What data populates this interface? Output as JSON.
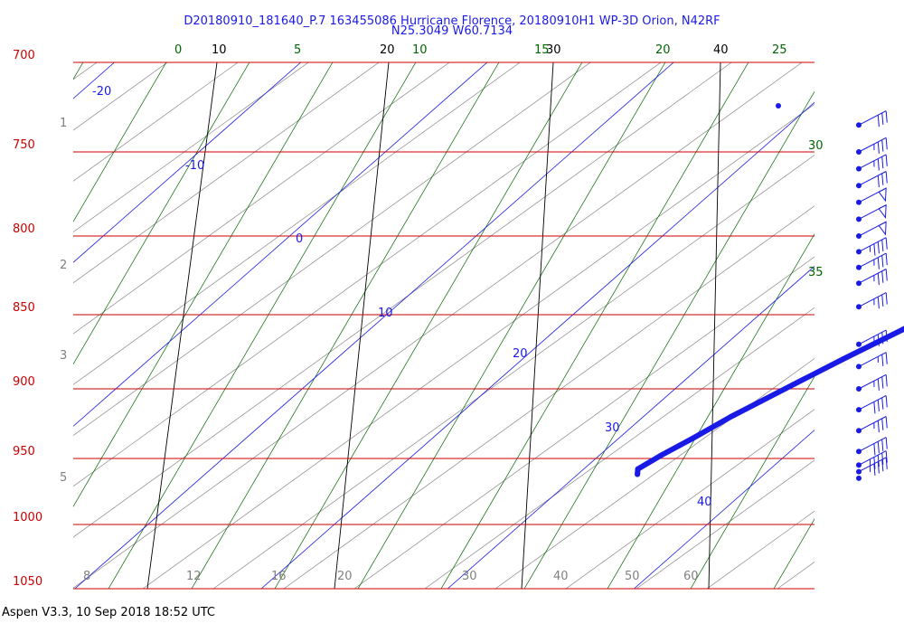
{
  "header": {
    "title_line1": "D20180910_181640_P.7 163455086 Hurricane Florence, 20180910H1 WP-3D Orion, N42RF",
    "title_line2": "N25.3049 W60.7134"
  },
  "footer": {
    "text": "Aspen V3.3, 10 Sep 2018  18:52 UTC"
  },
  "colors": {
    "isobar": "#cc0000",
    "isotherm": "#1a1ae6",
    "dry_adiabat": "#888888",
    "mixing_ratio": "#000000",
    "moist_adiabat": "#006600",
    "profile": "#1a1ae6",
    "profile_top": "#ee0000",
    "altitude_label": "#808080"
  },
  "chart_data": {
    "type": "skew-t",
    "pressure_levels": [
      "700",
      "750",
      "800",
      "850",
      "900",
      "950",
      "1000",
      "1050"
    ],
    "isotherm_labels": [
      "-20",
      "-10",
      "0",
      "10",
      "20",
      "30",
      "40"
    ],
    "top_black_labels": [
      "10",
      "20",
      "30",
      "40"
    ],
    "top_green_labels": [
      "0",
      "5",
      "10",
      "15",
      "20",
      "25"
    ],
    "right_green_labels": [
      "30",
      "35"
    ],
    "bottom_gray_labels": [
      "8",
      "12",
      "16",
      "20",
      "30",
      "40",
      "50",
      "60"
    ],
    "altitude_labels": [
      "1",
      "2",
      "3",
      "5"
    ],
    "temperature_profile": [
      {
        "p": 962,
        "t": 23.2
      },
      {
        "p": 958,
        "t": 22.9
      },
      {
        "p": 948,
        "t": 23.3
      },
      {
        "p": 935,
        "t": 24.0
      },
      {
        "p": 920,
        "t": 24.7
      },
      {
        "p": 900,
        "t": 25.9
      },
      {
        "p": 880,
        "t": 27.2
      },
      {
        "p": 860,
        "t": 28.6
      },
      {
        "p": 845,
        "t": 29.6
      },
      {
        "p": 830,
        "t": 31.4
      },
      {
        "p": 815,
        "t": 32.5
      },
      {
        "p": 800,
        "t": 34.2
      },
      {
        "p": 785,
        "t": 35.5
      },
      {
        "p": 772,
        "t": 37.2
      },
      {
        "p": 764,
        "t": 37.3
      },
      {
        "p": 755,
        "t": 37.8
      }
    ],
    "temperature_profile_top": [
      {
        "p": 755,
        "t": 37.9
      },
      {
        "p": 750,
        "t": 38.4
      },
      {
        "p": 745,
        "t": 38.9
      }
    ],
    "wind_levels": [
      {
        "p": 735,
        "spd": 30
      },
      {
        "p": 750,
        "spd": 35
      },
      {
        "p": 760,
        "spd": 35
      },
      {
        "p": 770,
        "spd": 30
      },
      {
        "p": 780,
        "spd": 50
      },
      {
        "p": 790,
        "spd": 50
      },
      {
        "p": 800,
        "spd": 50
      },
      {
        "p": 810,
        "spd": 45
      },
      {
        "p": 820,
        "spd": 35
      },
      {
        "p": 830,
        "spd": 35
      },
      {
        "p": 845,
        "spd": 35
      },
      {
        "p": 870,
        "spd": 35
      },
      {
        "p": 885,
        "spd": 25
      },
      {
        "p": 900,
        "spd": 35
      },
      {
        "p": 915,
        "spd": 40
      },
      {
        "p": 930,
        "spd": 35
      },
      {
        "p": 945,
        "spd": 40
      },
      {
        "p": 955,
        "spd": 45
      },
      {
        "p": 960,
        "spd": 45
      },
      {
        "p": 965,
        "spd": 0
      }
    ]
  }
}
